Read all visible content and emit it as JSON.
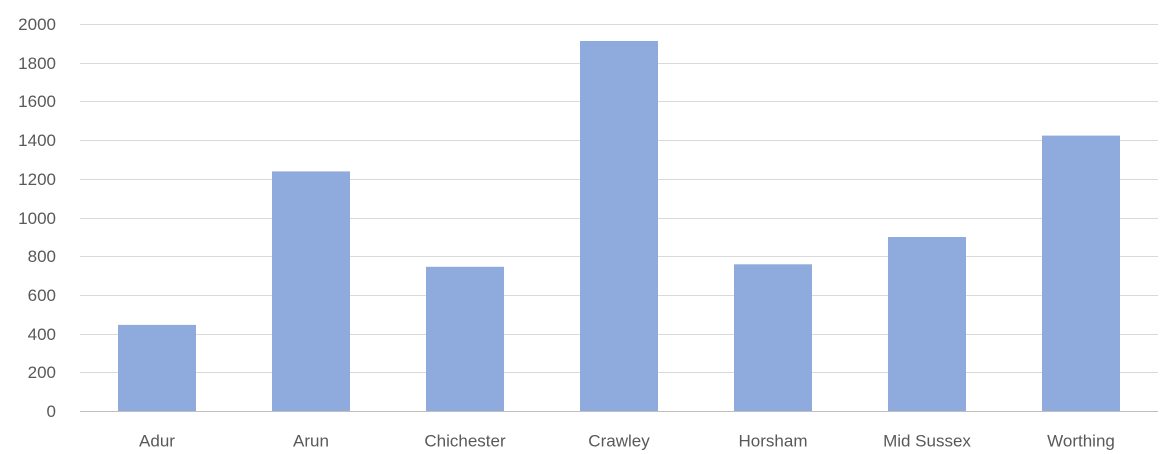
{
  "chart_data": {
    "type": "bar",
    "title": "",
    "xlabel": "",
    "ylabel": "",
    "categories": [
      "Adur",
      "Arun",
      "Chichester",
      "Crawley",
      "Horsham",
      "Mid Sussex",
      "Worthing"
    ],
    "values": [
      445,
      1238,
      745,
      1912,
      758,
      899,
      1423
    ],
    "ylim": [
      0,
      2000
    ],
    "yticks": [
      0,
      200,
      400,
      600,
      800,
      1000,
      1200,
      1400,
      1600,
      1800,
      2000
    ],
    "ytick_labels": [
      "0",
      "200",
      "400",
      "600",
      "800",
      "1000",
      "1200",
      "1400",
      "1600",
      "1800",
      "2000"
    ],
    "grid": true,
    "legend": "none",
    "bar_color": "#8faadc"
  }
}
